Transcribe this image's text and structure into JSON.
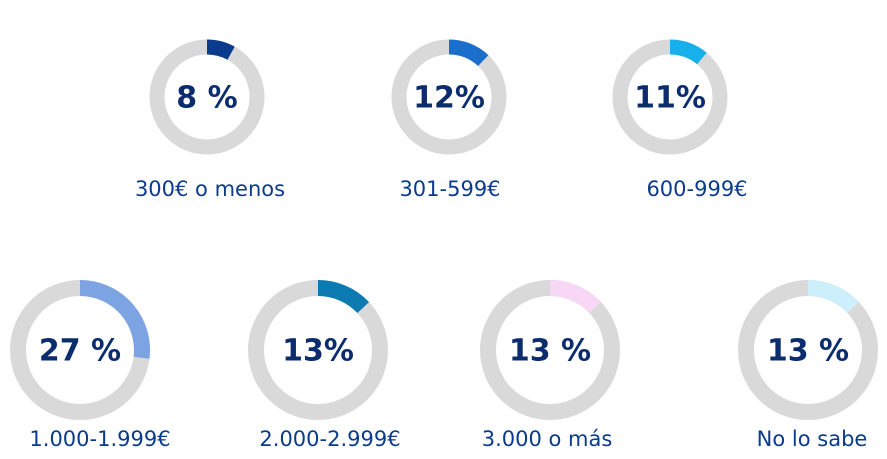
{
  "chart_data": [
    {
      "type": "donut",
      "categories": [
        "300€ o menos"
      ],
      "values": [
        8
      ],
      "value_labels": [
        "8 %"
      ],
      "color": "#0b3b8c"
    },
    {
      "type": "donut",
      "categories": [
        "301-599€"
      ],
      "values": [
        12
      ],
      "value_labels": [
        "12%"
      ],
      "color": "#1b6fca"
    },
    {
      "type": "donut",
      "categories": [
        "600-999€"
      ],
      "values": [
        11
      ],
      "value_labels": [
        "11%"
      ],
      "color": "#17b0ea"
    },
    {
      "type": "donut",
      "categories": [
        "1.000-1.999€"
      ],
      "values": [
        27
      ],
      "value_labels": [
        "27 %"
      ],
      "color": "#7ca4e2"
    },
    {
      "type": "donut",
      "categories": [
        "2.000-2.999€"
      ],
      "values": [
        13
      ],
      "value_labels": [
        "13%"
      ],
      "color": "#0b7bb2"
    },
    {
      "type": "donut",
      "categories": [
        "3.000 o más"
      ],
      "values": [
        13
      ],
      "value_labels": [
        "13 %"
      ],
      "color": "#f8d7f6"
    },
    {
      "type": "donut",
      "categories": [
        "No lo sabe"
      ],
      "values": [
        13
      ],
      "value_labels": [
        "13 %"
      ],
      "color": "#cdeefb"
    }
  ]
}
